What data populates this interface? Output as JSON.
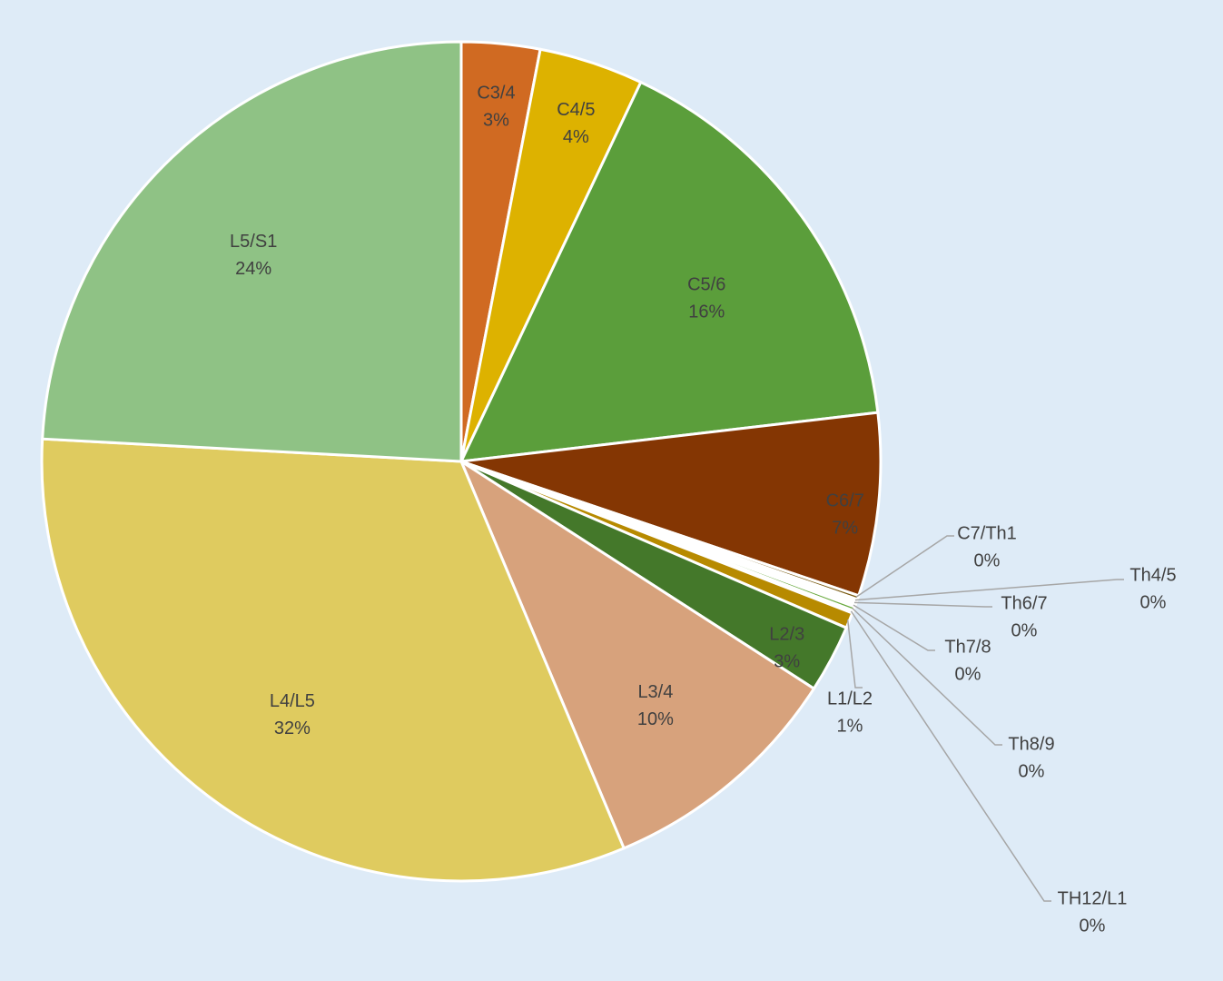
{
  "chart_data": {
    "type": "pie",
    "title": "",
    "start_angle_deg": 0,
    "direction": "clockwise",
    "slices": [
      {
        "label": "C3/4",
        "value": 3.0,
        "value_label": "3%",
        "color": "#d06a22",
        "label_placement": "inside"
      },
      {
        "label": "C4/5",
        "value": 4.0,
        "value_label": "4%",
        "color": "#ddb200",
        "label_placement": "inside"
      },
      {
        "label": "C5/6",
        "value": 16.0,
        "value_label": "16%",
        "color": "#5b9e3b",
        "label_placement": "inside"
      },
      {
        "label": "C6/7",
        "value": 7.0,
        "value_label": "7%",
        "color": "#843603",
        "label_placement": "inside"
      },
      {
        "label": "C7/Th1",
        "value": 0.15,
        "value_label": "0%",
        "color": "#7a5a10",
        "label_placement": "outside"
      },
      {
        "label": "Th4/5",
        "value": 0.1,
        "value_label": "0%",
        "color": "#e8a8a8",
        "label_placement": "outside"
      },
      {
        "label": "Th6/7",
        "value": 0.1,
        "value_label": "0%",
        "color": "#c9b227",
        "label_placement": "outside"
      },
      {
        "label": "Th7/8",
        "value": 0.1,
        "value_label": "0%",
        "color": "#8fc082",
        "label_placement": "outside"
      },
      {
        "label": "Th8/9",
        "value": 0.15,
        "value_label": "0%",
        "color": "#6aaa40",
        "label_placement": "outside"
      },
      {
        "label": "TH12/L1",
        "value": 0.1,
        "value_label": "0%",
        "color": "#e0a070",
        "label_placement": "outside"
      },
      {
        "label": "L1/L2",
        "value": 0.6,
        "value_label": "1%",
        "color": "#b78a00",
        "label_placement": "outside"
      },
      {
        "label": "L2/3",
        "value": 2.6,
        "value_label": "3%",
        "color": "#44782a",
        "label_placement": "inside"
      },
      {
        "label": "L3/4",
        "value": 9.5,
        "value_label": "10%",
        "color": "#d7a27c",
        "label_placement": "inside"
      },
      {
        "label": "L4/L5",
        "value": 32.0,
        "value_label": "32%",
        "color": "#dfcb5f",
        "label_placement": "inside"
      },
      {
        "label": "L5/S1",
        "value": 24.0,
        "value_label": "24%",
        "color": "#8fc285",
        "label_placement": "inside"
      }
    ]
  }
}
